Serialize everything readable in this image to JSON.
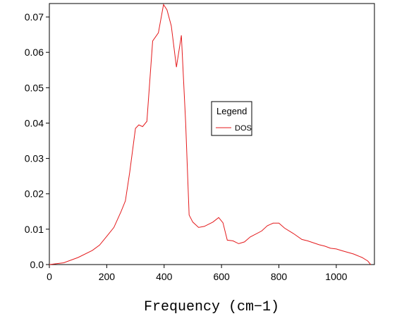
{
  "chart_data": {
    "type": "line",
    "xlabel": "Frequency (cm−1)",
    "legend_title": "Legend",
    "x": [
      0,
      50,
      100,
      150,
      175,
      200,
      225,
      250,
      265,
      280,
      300,
      312,
      325,
      340,
      360,
      380,
      398,
      410,
      425,
      443,
      460,
      475,
      487,
      500,
      520,
      540,
      570,
      590,
      605,
      620,
      640,
      660,
      680,
      700,
      740,
      760,
      780,
      800,
      820,
      850,
      880,
      900,
      940,
      960,
      980,
      1000,
      1020,
      1060,
      1090,
      1110,
      1120
    ],
    "series": [
      {
        "name": "DOS",
        "color": "#e41a1c",
        "values": [
          0,
          0.0005,
          0.002,
          0.004,
          0.0055,
          0.008,
          0.0105,
          0.015,
          0.018,
          0.026,
          0.0385,
          0.0395,
          0.039,
          0.0405,
          0.0632,
          0.0655,
          0.0735,
          0.072,
          0.0675,
          0.0558,
          0.0648,
          0.04,
          0.014,
          0.012,
          0.0105,
          0.0108,
          0.012,
          0.0133,
          0.0118,
          0.0069,
          0.0067,
          0.0059,
          0.0064,
          0.0078,
          0.0095,
          0.011,
          0.0117,
          0.0117,
          0.0103,
          0.0088,
          0.0071,
          0.0067,
          0.0056,
          0.0052,
          0.0046,
          0.0044,
          0.0039,
          0.003,
          0.002,
          0.001,
          0
        ]
      }
    ],
    "xlim": [
      0,
      1133
    ],
    "ylim": [
      0,
      0.0738
    ],
    "xticks": [
      0,
      200,
      400,
      600,
      800,
      1000
    ],
    "yticks": [
      {
        "value": 0,
        "label": "0.0"
      },
      0.01,
      0.02,
      0.03,
      0.04,
      0.05,
      0.06,
      0.07
    ],
    "legend_position": "center"
  }
}
